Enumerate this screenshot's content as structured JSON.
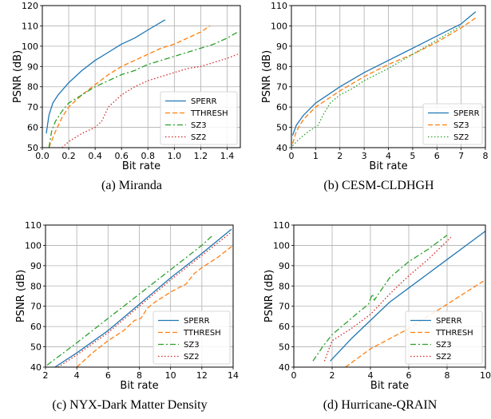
{
  "chart_data": [
    {
      "type": "line",
      "caption": "(a)  Miranda",
      "xlabel": "Bit rate",
      "ylabel": "PSNR (dB)",
      "xlim": [
        0.0,
        1.5
      ],
      "ylim": [
        50,
        120
      ],
      "xticks": [
        "0.0",
        "0.2",
        "0.4",
        "0.6",
        "0.8",
        "1.0",
        "1.2",
        "1.4"
      ],
      "yticks": [
        "50",
        "60",
        "70",
        "80",
        "90",
        "100",
        "110",
        "120"
      ],
      "grid": true,
      "legend_position": "lower-right",
      "series": [
        {
          "name": "SPERR",
          "color": "#1f77b4",
          "dash": "solid",
          "x": [
            0.03,
            0.05,
            0.08,
            0.12,
            0.2,
            0.3,
            0.4,
            0.5,
            0.6,
            0.7,
            0.8,
            0.93
          ],
          "y": [
            57,
            66,
            72,
            76,
            82,
            88,
            93,
            97,
            101,
            104,
            108,
            113
          ]
        },
        {
          "name": "TTHRESH",
          "color": "#ff7f0e",
          "dash": "dashed",
          "x": [
            0.05,
            0.1,
            0.15,
            0.2,
            0.3,
            0.4,
            0.5,
            0.6,
            0.7,
            0.8,
            0.9,
            1.0,
            1.1,
            1.2,
            1.27
          ],
          "y": [
            50,
            58,
            65,
            70,
            76,
            81,
            86,
            90,
            93,
            96,
            99,
            101,
            104,
            107,
            110
          ]
        },
        {
          "name": "SZ3",
          "color": "#2ca02c",
          "dash": "dashdot",
          "x": [
            0.05,
            0.07,
            0.1,
            0.15,
            0.2,
            0.3,
            0.4,
            0.5,
            0.6,
            0.7,
            0.8,
            0.9,
            1.0,
            1.1,
            1.2,
            1.3,
            1.4,
            1.48
          ],
          "y": [
            50,
            58,
            63,
            68,
            72,
            76,
            80,
            83,
            86,
            88,
            91,
            93,
            95,
            97,
            99,
            101,
            104,
            107
          ]
        },
        {
          "name": "SZ2",
          "color": "#d62728",
          "dash": "dotted",
          "x": [
            0.15,
            0.2,
            0.3,
            0.4,
            0.45,
            0.5,
            0.6,
            0.7,
            0.8,
            0.9,
            1.0,
            1.1,
            1.2,
            1.3,
            1.4,
            1.48
          ],
          "y": [
            50,
            53,
            57,
            60,
            63,
            70,
            76,
            80,
            83,
            85,
            87,
            89,
            90,
            92,
            94,
            96
          ]
        }
      ]
    },
    {
      "type": "line",
      "caption": "(b)  CESM-CLDHGH",
      "xlabel": "Bit rate",
      "ylabel": "PSNR (dB)",
      "xlim": [
        0,
        8
      ],
      "ylim": [
        40,
        110
      ],
      "xticks": [
        "0",
        "1",
        "2",
        "3",
        "4",
        "5",
        "6",
        "7",
        "8"
      ],
      "yticks": [
        "40",
        "50",
        "60",
        "70",
        "80",
        "90",
        "100",
        "110"
      ],
      "grid": true,
      "legend_position": "lower-right",
      "series": [
        {
          "name": "SPERR",
          "color": "#1f77b4",
          "dash": "solid",
          "x": [
            0.05,
            0.2,
            0.5,
            1,
            1.5,
            2,
            3,
            4,
            5,
            6,
            7,
            7.6
          ],
          "y": [
            46,
            51,
            56,
            62,
            66,
            70,
            77,
            83,
            89,
            95,
            101,
            107
          ]
        },
        {
          "name": "SZ3",
          "color": "#ff7f0e",
          "dash": "dashed",
          "x": [
            0.05,
            0.2,
            0.5,
            1,
            1.5,
            2,
            3,
            4,
            5,
            6,
            7,
            7.6
          ],
          "y": [
            42,
            48,
            54,
            60,
            64,
            68,
            75,
            81,
            86,
            92,
            99,
            104
          ]
        },
        {
          "name": "SZ2",
          "color": "#2ca02c",
          "dash": "dotted",
          "x": [
            0.05,
            0.3,
            0.7,
            1.1,
            1.3,
            1.6,
            2,
            2.5,
            3,
            4,
            5,
            6,
            7
          ],
          "y": [
            41,
            44,
            48,
            51,
            56,
            62,
            66,
            69,
            73,
            79,
            86,
            93,
            100
          ]
        }
      ]
    },
    {
      "type": "line",
      "caption": "(c)  NYX-Dark Matter Density",
      "xlabel": "Bit rate",
      "ylabel": "PSNR (dB)",
      "xlim": [
        2,
        14
      ],
      "ylim": [
        40,
        110
      ],
      "xticks": [
        "2",
        "4",
        "6",
        "8",
        "10",
        "12",
        "14"
      ],
      "yticks": [
        "40",
        "50",
        "60",
        "70",
        "80",
        "90",
        "100",
        "110"
      ],
      "grid": true,
      "legend_position": "lower-right",
      "series": [
        {
          "name": "SPERR",
          "color": "#1f77b4",
          "dash": "solid",
          "x": [
            2.6,
            4,
            6,
            8,
            10,
            12,
            13.9
          ],
          "y": [
            40,
            47,
            58,
            71,
            84,
            96,
            108
          ]
        },
        {
          "name": "TTHRESH",
          "color": "#ff7f0e",
          "dash": "dashed",
          "x": [
            4,
            5,
            6,
            7,
            7.7,
            8.1,
            8.5,
            9,
            10,
            11,
            11.5,
            12,
            13,
            14
          ],
          "y": [
            40,
            47,
            53,
            58,
            63,
            64,
            69,
            72,
            77,
            81,
            86,
            89,
            94,
            100
          ]
        },
        {
          "name": "SZ3",
          "color": "#2ca02c",
          "dash": "dashdot",
          "x": [
            2.1,
            4,
            6,
            8,
            10,
            12,
            12.7
          ],
          "y": [
            41,
            52,
            64,
            76,
            88,
            100,
            105
          ]
        },
        {
          "name": "SZ2",
          "color": "#d62728",
          "dash": "dotted",
          "x": [
            2.8,
            4,
            6,
            8,
            10,
            12,
            13.8
          ],
          "y": [
            40,
            46,
            57,
            70,
            83,
            95,
            106
          ]
        }
      ]
    },
    {
      "type": "line",
      "caption": "(d)  Hurricane-QRAIN",
      "xlabel": "Bit rate",
      "ylabel": "PSNR (dB)",
      "xlim": [
        0,
        10
      ],
      "ylim": [
        40,
        110
      ],
      "xticks": [
        "0",
        "2",
        "4",
        "6",
        "8",
        "10"
      ],
      "yticks": [
        "40",
        "50",
        "60",
        "70",
        "80",
        "90",
        "100",
        "110"
      ],
      "grid": true,
      "legend_position": "lower-right",
      "series": [
        {
          "name": "SPERR",
          "color": "#1f77b4",
          "dash": "solid",
          "x": [
            1.9,
            3,
            4,
            5,
            6,
            7,
            8,
            9,
            10
          ],
          "y": [
            43,
            54,
            63,
            72,
            79,
            86,
            93,
            100,
            107
          ]
        },
        {
          "name": "TTHRESH",
          "color": "#ff7f0e",
          "dash": "dashed",
          "x": [
            2.7,
            4,
            5,
            6,
            7,
            8,
            9,
            10
          ],
          "y": [
            40,
            49,
            54,
            59,
            65,
            71,
            77,
            83
          ]
        },
        {
          "name": "SZ3",
          "color": "#2ca02c",
          "dash": "dashdot",
          "x": [
            1,
            1.5,
            2,
            2.5,
            3,
            3.5,
            3.9,
            4.1,
            4.2,
            5,
            6,
            7,
            8
          ],
          "y": [
            43,
            50,
            56,
            60,
            64,
            68,
            71,
            76,
            73,
            84,
            92,
            98,
            105
          ]
        },
        {
          "name": "SZ2",
          "color": "#d62728",
          "dash": "dotted",
          "x": [
            1.6,
            2,
            3,
            4,
            5,
            6,
            7,
            8.2
          ],
          "y": [
            43,
            53,
            59,
            66,
            76,
            85,
            93,
            104
          ]
        }
      ]
    }
  ]
}
